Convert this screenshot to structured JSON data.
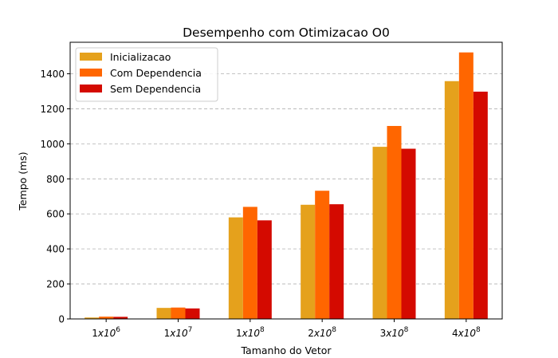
{
  "chart_data": {
    "type": "bar",
    "title": "Desempenho com Otimizacao O0",
    "xlabel": "Tamanho do Vetor",
    "ylabel": "Tempo (ms)",
    "categories": [
      {
        "coef": "1",
        "base": "x10",
        "exp": "6"
      },
      {
        "coef": "1",
        "base": "x10",
        "exp": "7"
      },
      {
        "coef": "1",
        "base": "x10",
        "exp": "8"
      },
      {
        "coef": "2",
        "base": "x10",
        "exp": "8"
      },
      {
        "coef": "3",
        "base": "x10",
        "exp": "8"
      },
      {
        "coef": "4",
        "base": "x10",
        "exp": "8"
      }
    ],
    "series": [
      {
        "name": "Inicializacao",
        "color": "#E5A11C",
        "values": [
          8,
          63,
          580,
          652,
          983,
          1358
        ]
      },
      {
        "name": "Com Dependencia",
        "color": "#FF6600",
        "values": [
          13,
          65,
          640,
          732,
          1102,
          1522
        ]
      },
      {
        "name": "Sem Dependencia",
        "color": "#D40A00",
        "values": [
          12,
          60,
          563,
          655,
          972,
          1298
        ]
      }
    ],
    "ylim": [
      0,
      1580
    ],
    "yticks": [
      0,
      200,
      400,
      600,
      800,
      1000,
      1200,
      1400
    ],
    "grid": "y, dashed",
    "legend_position": "top-left"
  }
}
